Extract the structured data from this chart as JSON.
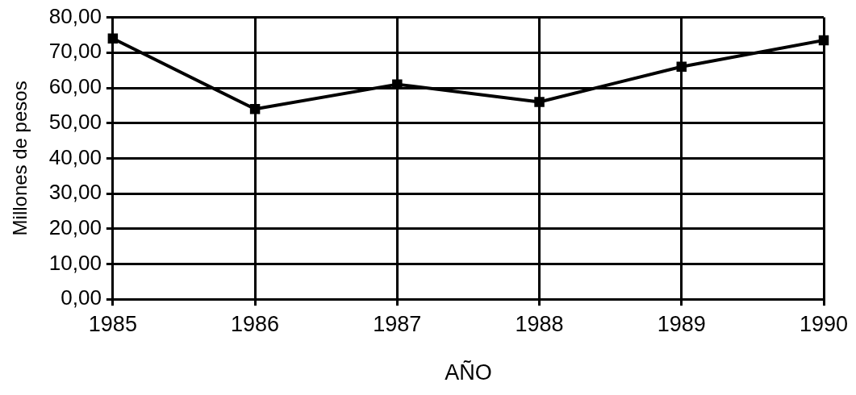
{
  "chart_data": {
    "type": "line",
    "xlabel": "AÑO",
    "ylabel": "Millones de pesos",
    "categories": [
      "1985",
      "1986",
      "1987",
      "1988",
      "1989",
      "1990"
    ],
    "series": [
      {
        "color": "#000000",
        "values": [
          74,
          54,
          61,
          56,
          66,
          73.5
        ]
      }
    ],
    "ylim": [
      0,
      80
    ],
    "yticks": [
      {
        "value": 0,
        "label": "0,00"
      },
      {
        "value": 10,
        "label": "10,00"
      },
      {
        "value": 20,
        "label": "20,00"
      },
      {
        "value": 30,
        "label": "30,00"
      },
      {
        "value": 40,
        "label": "40,00"
      },
      {
        "value": 50,
        "label": "50,00"
      },
      {
        "value": 60,
        "label": "60,00"
      },
      {
        "value": 70,
        "label": "70,00"
      },
      {
        "value": 80,
        "label": "80,00"
      }
    ],
    "grid": true,
    "legend": false,
    "marker": "square",
    "line_style": "solid"
  }
}
